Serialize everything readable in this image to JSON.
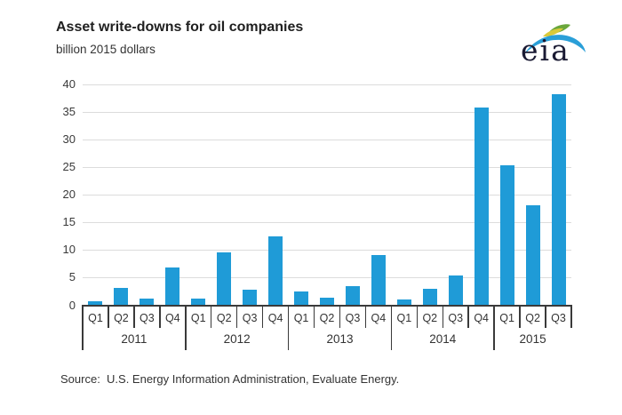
{
  "header": {
    "title": "Asset write-downs for oil companies",
    "subtitle": "billion 2015 dollars"
  },
  "logo": {
    "text": "eia"
  },
  "source": {
    "text": "Source:  U.S. Energy Information Administration, Evaluate Energy."
  },
  "colors": {
    "bar": "#1f9bd7",
    "gridline": "#dcdcdc",
    "axis": "#3a3a3a",
    "text": "#333333",
    "logo_blue": "#2a9fd8",
    "logo_green": "#6aa73c",
    "logo_yellow": "#d9c93a"
  },
  "chart_data": {
    "type": "bar",
    "title": "Asset write-downs for oil companies",
    "ylabel": "billion 2015 dollars",
    "xlabel": "",
    "ylim": [
      0,
      40
    ],
    "ytick_interval": 5,
    "yticks": [
      0,
      5,
      10,
      15,
      20,
      25,
      30,
      35,
      40
    ],
    "grid": "horizontal",
    "legend": "none",
    "bar_color": "#1f9bd7",
    "years": [
      {
        "year": "2011",
        "quarters": [
          "Q1",
          "Q2",
          "Q3",
          "Q4"
        ],
        "values": [
          0.8,
          3.2,
          1.2,
          6.8
        ]
      },
      {
        "year": "2012",
        "quarters": [
          "Q1",
          "Q2",
          "Q3",
          "Q4"
        ],
        "values": [
          1.2,
          9.5,
          2.8,
          12.5
        ]
      },
      {
        "year": "2013",
        "quarters": [
          "Q1",
          "Q2",
          "Q3",
          "Q4"
        ],
        "values": [
          2.5,
          1.3,
          3.4,
          9.1
        ]
      },
      {
        "year": "2014",
        "quarters": [
          "Q1",
          "Q2",
          "Q3",
          "Q4"
        ],
        "values": [
          1.1,
          3.0,
          5.4,
          35.8
        ]
      },
      {
        "year": "2015",
        "quarters": [
          "Q1",
          "Q2",
          "Q3"
        ],
        "values": [
          25.3,
          18.1,
          38.2
        ]
      }
    ]
  }
}
